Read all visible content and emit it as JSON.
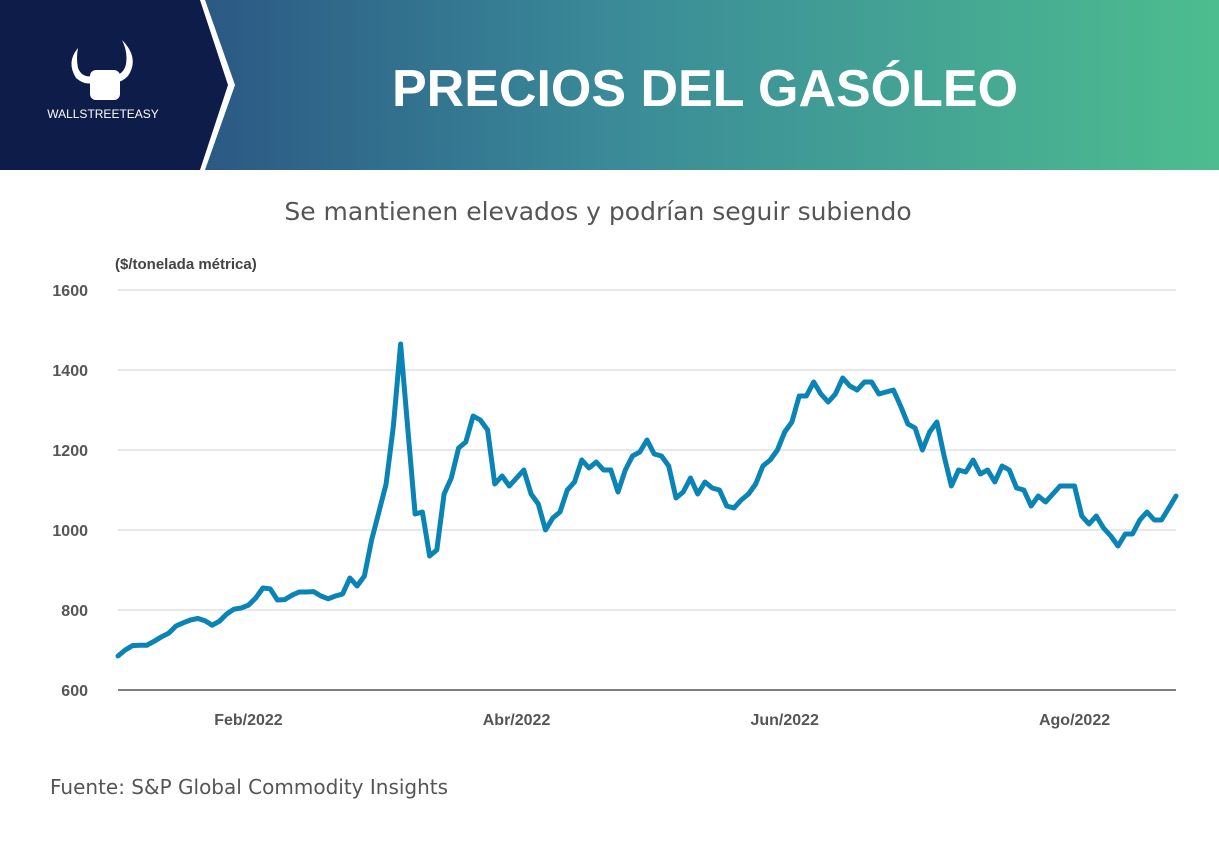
{
  "brand": "WALLSTREETEASY",
  "chart_data": {
    "type": "line",
    "title": "PRECIOS DEL GASÓLEO",
    "subtitle": "Se mantienen elevados y podrían seguir subiendo",
    "y_label": "($/tonelada métrica)",
    "source": "Fuente: S&P Global Commodity Insights",
    "categories": [
      null,
      null,
      null,
      null,
      null,
      null,
      null,
      null,
      null,
      null,
      null,
      null,
      null,
      null,
      null,
      null,
      null,
      null,
      "Feb/2022",
      null,
      null,
      null,
      null,
      null,
      null,
      null,
      null,
      null,
      null,
      null,
      null,
      null,
      null,
      null,
      null,
      null,
      null,
      null,
      null,
      null,
      null,
      null,
      null,
      null,
      null,
      null,
      null,
      null,
      null,
      null,
      null,
      null,
      null,
      null,
      null,
      "Abr/2022",
      null,
      null,
      null,
      null,
      null,
      null,
      null,
      null,
      null,
      null,
      null,
      null,
      null,
      null,
      null,
      null,
      null,
      null,
      null,
      null,
      null,
      null,
      null,
      null,
      null,
      null,
      null,
      null,
      null,
      null,
      null,
      null,
      null,
      null,
      null,
      null,
      "Jun/2022",
      null,
      null,
      null,
      null,
      null,
      null,
      null,
      null,
      null,
      null,
      null,
      null,
      null,
      null,
      null,
      null,
      null,
      null,
      null,
      null,
      null,
      null,
      null,
      null,
      null,
      null,
      null,
      null,
      null,
      null,
      null,
      null,
      null,
      null,
      null,
      null,
      null,
      null,
      null,
      "Ago/2022",
      null,
      null,
      null,
      null,
      null,
      null,
      null,
      null,
      null,
      null,
      null,
      null,
      null,
      null
    ],
    "series": [
      {
        "name": "Gasóleo",
        "color": "#0a84b5",
        "values": [
          685,
          700,
          711,
          712,
          712,
          722,
          733,
          742,
          760,
          768,
          775,
          779,
          773,
          762,
          772,
          790,
          802,
          805,
          812,
          830,
          855,
          853,
          825,
          826,
          837,
          845,
          845,
          846,
          835,
          828,
          835,
          840,
          880,
          860,
          885,
          975,
          1045,
          1115,
          1260,
          1465,
          1250,
          1040,
          1045,
          935,
          950,
          1090,
          1130,
          1205,
          1220,
          1285,
          1275,
          1250,
          1115,
          1135,
          1110,
          1130,
          1150,
          1090,
          1065,
          1000,
          1030,
          1045,
          1100,
          1120,
          1175,
          1155,
          1170,
          1150,
          1150,
          1095,
          1150,
          1185,
          1195,
          1225,
          1190,
          1185,
          1160,
          1080,
          1095,
          1130,
          1090,
          1120,
          1105,
          1100,
          1060,
          1055,
          1075,
          1090,
          1115,
          1160,
          1175,
          1200,
          1245,
          1270,
          1335,
          1335,
          1370,
          1340,
          1320,
          1340,
          1380,
          1360,
          1350,
          1370,
          1370,
          1340,
          1345,
          1350,
          1310,
          1265,
          1255,
          1200,
          1245,
          1270,
          1185,
          1110,
          1150,
          1145,
          1175,
          1140,
          1150,
          1120,
          1160,
          1150,
          1105,
          1100,
          1060,
          1085,
          1070,
          1090,
          1110,
          1110,
          1110,
          1035,
          1015,
          1035,
          1005,
          985,
          960,
          990,
          990,
          1025,
          1045,
          1025,
          1025,
          1055,
          1085
        ]
      }
    ],
    "ylim": [
      600,
      1600
    ],
    "yticks": [
      600,
      800,
      1000,
      1200,
      1400,
      1600
    ],
    "grid": true
  }
}
